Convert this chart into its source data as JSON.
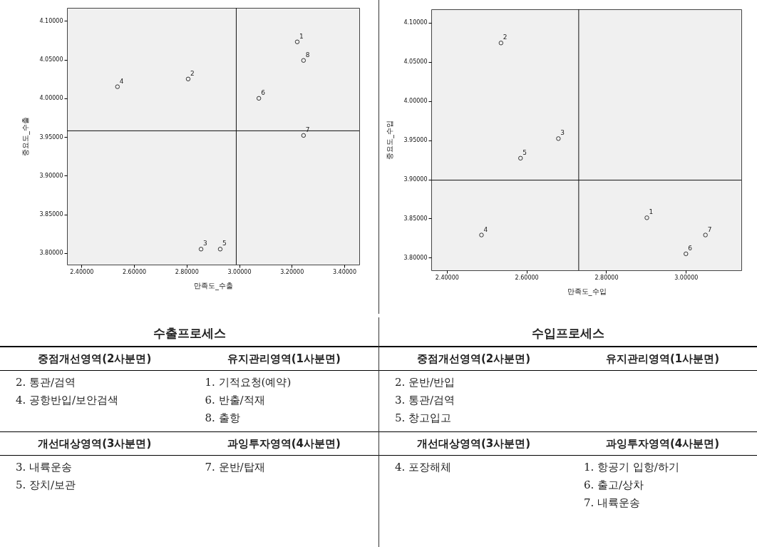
{
  "chart_data": [
    {
      "type": "scatter",
      "xlabel": "만족도_수출",
      "ylabel": "중요도_수출",
      "color": "#333333",
      "marker": "circle",
      "x": [
        3.221,
        2.806,
        2.855,
        2.537,
        2.928,
        3.075,
        3.245,
        3.245
      ],
      "values": [
        4.073,
        4.025,
        3.805,
        4.015,
        3.805,
        4.0,
        3.952,
        4.049
      ],
      "annotations": [
        {
          "text": "1",
          "x": 3.221,
          "y": 4.073
        },
        {
          "text": "2",
          "x": 2.806,
          "y": 4.025
        },
        {
          "text": "3",
          "x": 2.855,
          "y": 3.805
        },
        {
          "text": "4",
          "x": 2.537,
          "y": 4.015
        },
        {
          "text": "5",
          "x": 2.928,
          "y": 3.805
        },
        {
          "text": "6",
          "x": 3.075,
          "y": 4.0
        },
        {
          "text": "7",
          "x": 3.245,
          "y": 3.952
        },
        {
          "text": "8",
          "x": 3.245,
          "y": 4.049
        }
      ],
      "xlim": [
        2.345,
        3.457
      ],
      "ylim": [
        3.785,
        4.117
      ],
      "xticks": [
        {
          "value": 2.4,
          "label": "2.40000"
        },
        {
          "value": 2.6,
          "label": "2.60000"
        },
        {
          "value": 2.8,
          "label": "2.80000"
        },
        {
          "value": 3.0,
          "label": "3.00000"
        },
        {
          "value": 3.2,
          "label": "3.20000"
        },
        {
          "value": 3.4,
          "label": "3.40000"
        }
      ],
      "yticks": [
        {
          "value": 3.8,
          "label": "3.80000"
        },
        {
          "value": 3.85,
          "label": "3.85000"
        },
        {
          "value": 3.9,
          "label": "3.90000"
        },
        {
          "value": 3.95,
          "label": "3.95000"
        },
        {
          "value": 4.0,
          "label": "4.00000"
        },
        {
          "value": 4.05,
          "label": "4.05000"
        },
        {
          "value": 4.1,
          "label": "4.10000"
        }
      ],
      "ref_lines": [
        {
          "axis": "x",
          "value": 2.989
        },
        {
          "axis": "y",
          "value": 3.958
        }
      ]
    },
    {
      "type": "scatter",
      "xlabel": "만족도_수입",
      "ylabel": "중요도_수입",
      "color": "#333333",
      "marker": "circle",
      "x": [
        2.902,
        2.536,
        2.68,
        2.487,
        2.585,
        3.0,
        3.049
      ],
      "values": [
        3.851,
        4.074,
        3.952,
        3.829,
        3.927,
        3.805,
        3.829
      ],
      "annotations": [
        {
          "text": "1",
          "x": 2.902,
          "y": 3.851
        },
        {
          "text": "2",
          "x": 2.536,
          "y": 4.074
        },
        {
          "text": "3",
          "x": 2.68,
          "y": 3.952
        },
        {
          "text": "4",
          "x": 2.487,
          "y": 3.829
        },
        {
          "text": "5",
          "x": 2.585,
          "y": 3.927
        },
        {
          "text": "6",
          "x": 3.0,
          "y": 3.805
        },
        {
          "text": "7",
          "x": 3.049,
          "y": 3.829
        }
      ],
      "xlim": [
        2.361,
        3.139
      ],
      "ylim": [
        3.784,
        4.117
      ],
      "xticks": [
        {
          "value": 2.4,
          "label": "2.40000"
        },
        {
          "value": 2.6,
          "label": "2.60000"
        },
        {
          "value": 2.8,
          "label": "2.80000"
        },
        {
          "value": 3.0,
          "label": "3.00000"
        }
      ],
      "yticks": [
        {
          "value": 3.8,
          "label": "3.80000"
        },
        {
          "value": 3.85,
          "label": "3.85000"
        },
        {
          "value": 3.9,
          "label": "3.90000"
        },
        {
          "value": 3.95,
          "label": "3.95000"
        },
        {
          "value": 4.0,
          "label": "4.00000"
        },
        {
          "value": 4.05,
          "label": "4.05000"
        },
        {
          "value": 4.1,
          "label": "4.10000"
        }
      ],
      "ref_lines": [
        {
          "axis": "x",
          "value": 2.731
        },
        {
          "axis": "y",
          "value": 3.899
        }
      ]
    },
    {
      "type": "other",
      "title": "수출프로세스",
      "annotations": [
        "중점개선영역(2사분면)\n2. 통관/검역\n4. 공항반입/보안검색",
        "유지관리영역(1사분면)\n1. 기적요청(예약)\n6. 반출/적재\n8. 출항",
        "개선대상영역(3사분면)\n3. 내륙운송\n5. 장치/보관",
        "과잉투자영역(4사분면)\n7. 운반/탑재"
      ]
    },
    {
      "type": "other",
      "title": "수입프로세스",
      "annotations": [
        "중점개선영역(2사분면)\n2. 운반/반입\n3. 통관/검역\n5. 창고입고",
        "유지관리영역(1사분면)",
        "개선대상영역(3사분면)\n4. 포장해체",
        "과잉투자영역(4사분면)\n1. 항공기 입항/하기\n6. 출고/상차\n7. 내륙운송"
      ]
    }
  ]
}
